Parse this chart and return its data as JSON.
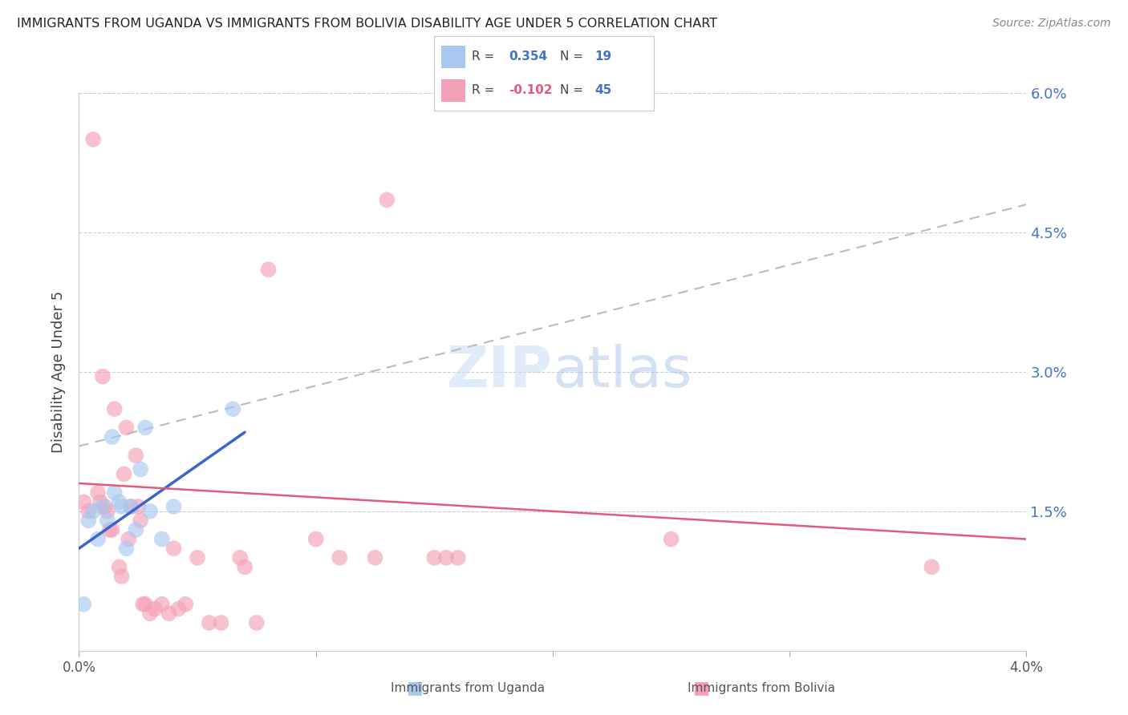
{
  "title": "IMMIGRANTS FROM UGANDA VS IMMIGRANTS FROM BOLIVIA DISABILITY AGE UNDER 5 CORRELATION CHART",
  "source": "Source: ZipAtlas.com",
  "ylabel": "Disability Age Under 5",
  "legend_label_uganda": "Immigrants from Uganda",
  "legend_label_bolivia": "Immigrants from Bolivia",
  "xlim": [
    0.0,
    4.0
  ],
  "ylim": [
    0.0,
    6.0
  ],
  "yticks": [
    0.0,
    1.5,
    3.0,
    4.5,
    6.0
  ],
  "color_uganda": "#A8C8F0",
  "color_bolivia": "#F4A0B8",
  "color_trendline_uganda": "#3A66CC",
  "color_trendline_bolivia": "#E05C7A",
  "color_dashed": "#BBBBBB",
  "color_right_axis": "#4472C4",
  "color_legend_r_blue": "#4472C4",
  "color_legend_r_pink": "#E05C7A",
  "background": "#FFFFFF",
  "uganda_x": [
    0.02,
    0.04,
    0.06,
    0.08,
    0.1,
    0.12,
    0.14,
    0.15,
    0.17,
    0.18,
    0.2,
    0.22,
    0.24,
    0.26,
    0.28,
    0.3,
    0.35,
    0.4,
    0.65
  ],
  "uganda_y": [
    0.5,
    1.4,
    1.5,
    1.2,
    1.55,
    1.4,
    2.3,
    1.7,
    1.6,
    1.55,
    1.1,
    1.55,
    1.3,
    1.95,
    2.4,
    1.5,
    1.2,
    1.55,
    2.6
  ],
  "bolivia_x": [
    0.02,
    0.04,
    0.06,
    0.08,
    0.09,
    0.1,
    0.11,
    0.12,
    0.13,
    0.14,
    0.15,
    0.17,
    0.18,
    0.19,
    0.2,
    0.21,
    0.22,
    0.24,
    0.25,
    0.26,
    0.27,
    0.28,
    0.3,
    0.32,
    0.35,
    0.38,
    0.4,
    0.42,
    0.45,
    0.5,
    0.55,
    0.6,
    0.68,
    0.7,
    0.75,
    0.8,
    1.0,
    1.1,
    1.25,
    1.3,
    1.5,
    1.55,
    1.6,
    2.5,
    3.6
  ],
  "bolivia_y": [
    1.6,
    1.5,
    5.5,
    1.7,
    1.6,
    2.95,
    1.55,
    1.5,
    1.3,
    1.3,
    2.6,
    0.9,
    0.8,
    1.9,
    2.4,
    1.2,
    1.55,
    2.1,
    1.55,
    1.4,
    0.5,
    0.5,
    0.4,
    0.45,
    0.5,
    0.4,
    1.1,
    0.45,
    0.5,
    1.0,
    0.3,
    0.3,
    1.0,
    0.9,
    0.3,
    4.1,
    1.2,
    1.0,
    1.0,
    4.85,
    1.0,
    1.0,
    1.0,
    1.2,
    0.9
  ],
  "ugline_x0": 0.0,
  "ugline_x1": 0.7,
  "ugline_y0": 1.1,
  "ugline_y1": 2.35,
  "boline_x0": 0.0,
  "boline_x1": 4.0,
  "boline_y0": 1.8,
  "boline_y1": 1.2,
  "dashline_x0": 0.0,
  "dashline_x1": 4.0,
  "dashline_y0": 2.2,
  "dashline_y1": 4.8
}
